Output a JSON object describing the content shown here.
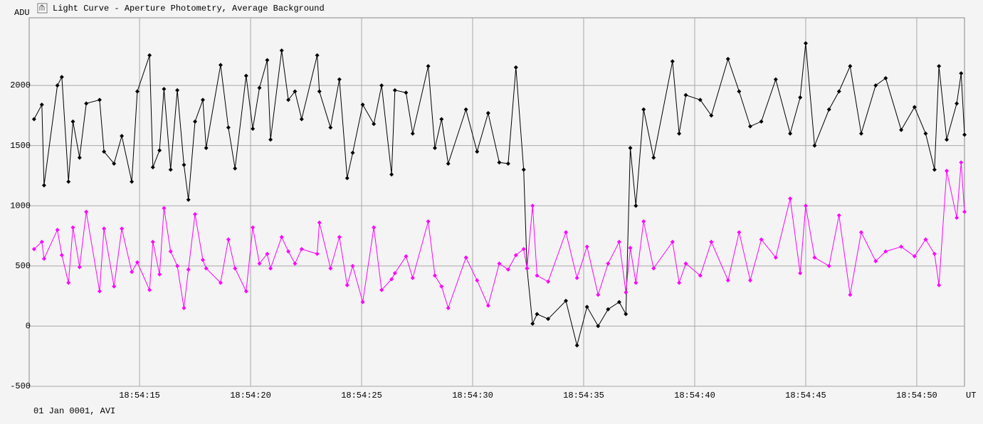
{
  "chart_data": {
    "type": "line",
    "title": "Light Curve - Aperture Photometry, Average Background",
    "y_label": "ADU",
    "x_label": "UT",
    "footer": "01 Jan 0001, AVI",
    "x": [
      10.25,
      10.6,
      10.7,
      11.3,
      11.5,
      11.8,
      12.0,
      12.3,
      12.6,
      13.2,
      13.4,
      13.85,
      14.2,
      14.65,
      14.9,
      15.45,
      15.6,
      15.9,
      16.1,
      16.4,
      16.7,
      17.0,
      17.2,
      17.5,
      17.85,
      18.0,
      18.65,
      19.0,
      19.3,
      19.8,
      20.1,
      20.4,
      20.75,
      20.9,
      21.4,
      21.7,
      22.0,
      22.3,
      23.0,
      23.1,
      23.6,
      24.0,
      24.35,
      24.6,
      25.05,
      25.55,
      25.9,
      26.35,
      26.5,
      27.0,
      27.3,
      28.0,
      28.3,
      28.6,
      28.9,
      29.7,
      30.2,
      30.7,
      31.2,
      31.6,
      31.95,
      32.3,
      32.45,
      32.7,
      32.9,
      33.4,
      34.2,
      34.7,
      35.15,
      35.65,
      36.1,
      36.6,
      36.9,
      37.1,
      37.35,
      37.7,
      38.15,
      39.0,
      39.3,
      39.6,
      40.25,
      40.75,
      41.5,
      42.0,
      42.5,
      43.0,
      43.65,
      44.3,
      44.75,
      45.0,
      45.4,
      46.05,
      46.5,
      47.0,
      47.5,
      48.15,
      48.6,
      49.3,
      49.9,
      50.4,
      50.8,
      51.0,
      51.35,
      51.8,
      52.0,
      52.15
    ],
    "series": [
      {
        "color": "#000000",
        "values": [
          1720,
          1840,
          1170,
          2000,
          2070,
          1200,
          1700,
          1400,
          1850,
          1880,
          1450,
          1350,
          1580,
          1200,
          1950,
          2250,
          1320,
          1460,
          1970,
          1300,
          1960,
          1340,
          1050,
          1700,
          1880,
          1480,
          2170,
          1650,
          1310,
          2080,
          1640,
          1980,
          2210,
          1550,
          2290,
          1880,
          1950,
          1720,
          2250,
          1950,
          1650,
          2050,
          1230,
          1440,
          1840,
          1680,
          2000,
          1260,
          1960,
          1940,
          1600,
          2160,
          1480,
          1720,
          1350,
          1800,
          1450,
          1770,
          1360,
          1350,
          2150,
          1300,
          480,
          20,
          100,
          60,
          210,
          -160,
          160,
          0,
          140,
          200,
          100,
          1480,
          1000,
          1800,
          1400,
          2200,
          1600,
          1920,
          1880,
          1750,
          2220,
          1950,
          1660,
          1700,
          2050,
          1600,
          1900,
          2350,
          1500,
          1800,
          1950,
          2160,
          1600,
          2000,
          2060,
          1630,
          1820,
          1600,
          1300,
          2160,
          1550,
          1850,
          2100,
          1590
        ]
      },
      {
        "color": "#ff00ff",
        "values": [
          640,
          700,
          560,
          800,
          590,
          360,
          820,
          490,
          950,
          290,
          810,
          330,
          810,
          450,
          530,
          300,
          700,
          430,
          980,
          620,
          500,
          150,
          470,
          930,
          550,
          480,
          360,
          720,
          480,
          290,
          820,
          520,
          600,
          480,
          740,
          620,
          520,
          640,
          600,
          860,
          480,
          740,
          340,
          500,
          200,
          820,
          300,
          390,
          440,
          580,
          400,
          870,
          420,
          330,
          150,
          570,
          380,
          170,
          520,
          470,
          590,
          640,
          480,
          1000,
          420,
          370,
          780,
          400,
          660,
          260,
          520,
          700,
          280,
          650,
          360,
          870,
          480,
          700,
          360,
          520,
          420,
          700,
          380,
          780,
          380,
          720,
          570,
          1060,
          440,
          1000,
          570,
          500,
          920,
          260,
          780,
          540,
          620,
          660,
          580,
          720,
          600,
          340,
          1290,
          900,
          1360,
          950
        ]
      }
    ],
    "xlim": [
      10.03,
      52.15
    ],
    "ylim": [
      -500,
      2562
    ],
    "xticks": [
      {
        "value": 15,
        "label": "18:54:15"
      },
      {
        "value": 20,
        "label": "18:54:20"
      },
      {
        "value": 25,
        "label": "18:54:25"
      },
      {
        "value": 30,
        "label": "18:54:30"
      },
      {
        "value": 35,
        "label": "18:54:35"
      },
      {
        "value": 40,
        "label": "18:54:40"
      },
      {
        "value": 45,
        "label": "18:54:45"
      },
      {
        "value": 50,
        "label": "18:54:50"
      }
    ],
    "yticks": [
      -500,
      0,
      500,
      1000,
      1500,
      2000
    ],
    "grid": true
  }
}
